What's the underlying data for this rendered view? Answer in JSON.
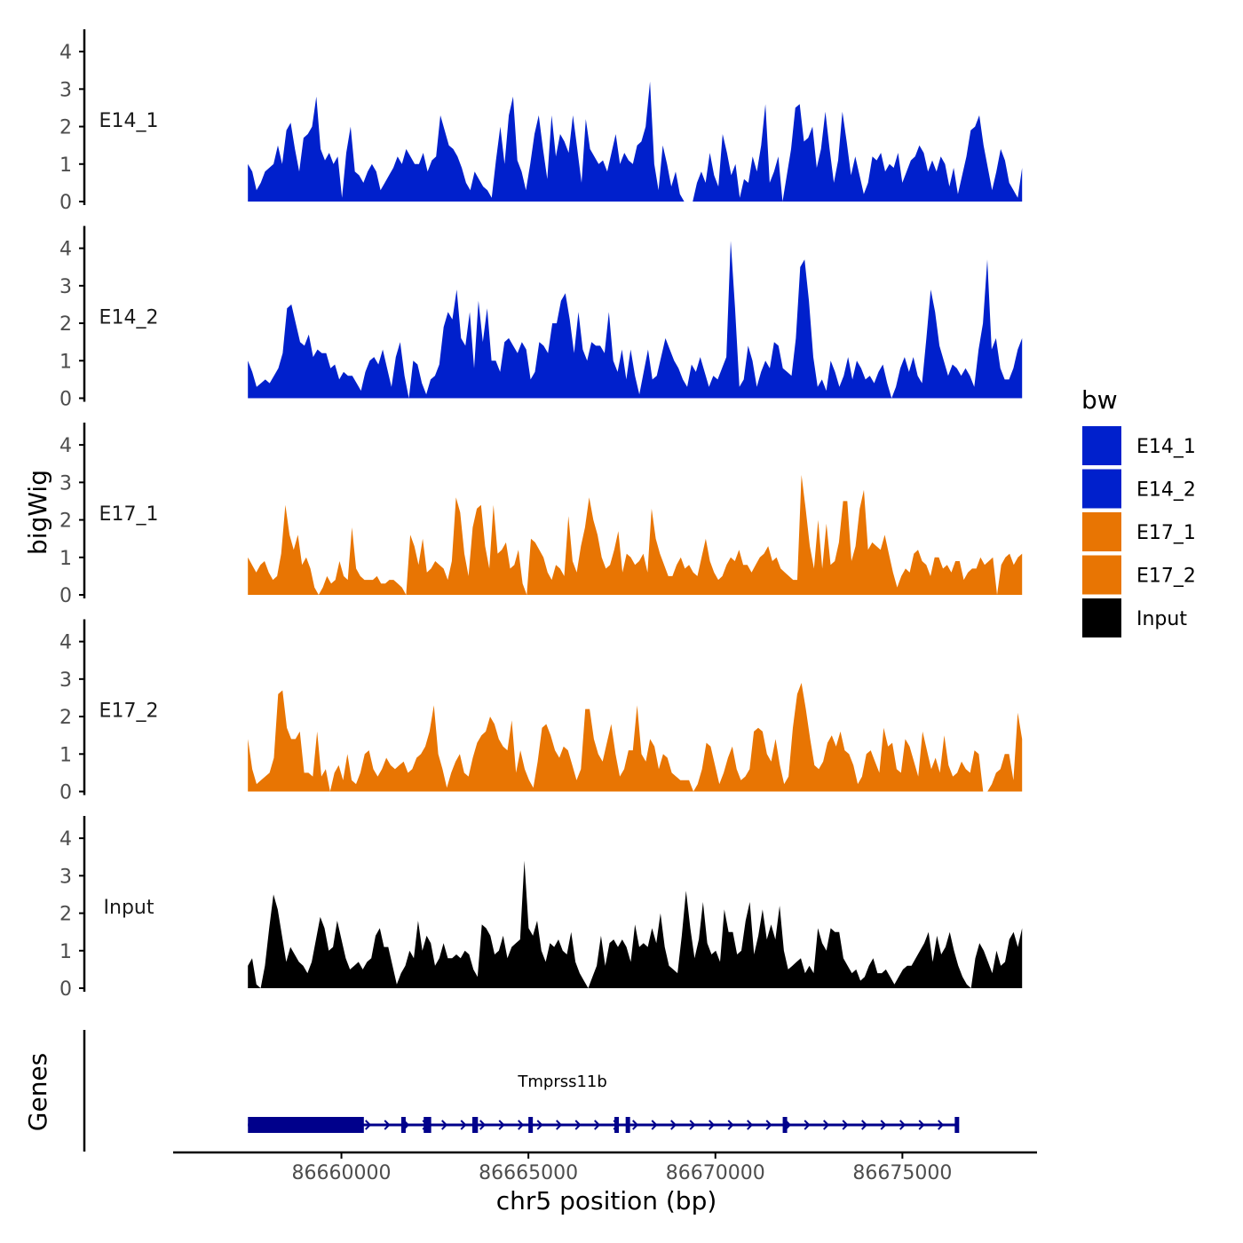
{
  "chart_data": {
    "type": "area",
    "title": "",
    "xlabel": "chr5 position (bp)",
    "ylabel": "bigWig",
    "lower_panel_label": "Genes",
    "xlim": [
      86655500,
      86678600
    ],
    "x_ticks": [
      86660000,
      86665000,
      86670000,
      86675000
    ],
    "x_tick_labels": [
      "86660000",
      "86665000",
      "86670000",
      "86675000"
    ],
    "ylim": [
      0,
      4.5
    ],
    "y_ticks": [
      0,
      1,
      2,
      3,
      4
    ],
    "y_tick_labels": [
      "0",
      "1",
      "2",
      "3",
      "4"
    ],
    "signal_range": [
      86657500,
      86678200
    ],
    "legend": {
      "title": "bw",
      "placement": "right",
      "entries": [
        {
          "name": "E14_1",
          "color": "#0020CC"
        },
        {
          "name": "E14_2",
          "color": "#0020CC"
        },
        {
          "name": "E17_1",
          "color": "#E87503"
        },
        {
          "name": "E17_2",
          "color": "#E87503"
        },
        {
          "name": "Input",
          "color": "#000000"
        }
      ]
    },
    "series": [
      {
        "name": "E14_1",
        "color": "#0020CC",
        "values": [
          1.0,
          0.8,
          0.3,
          0.5,
          0.8,
          0.9,
          1.0,
          1.5,
          1.0,
          1.9,
          2.1,
          1.4,
          0.8,
          1.7,
          1.8,
          2.0,
          2.8,
          1.4,
          1.1,
          1.3,
          1.0,
          1.2,
          0.1,
          1.3,
          2.0,
          0.8,
          0.7,
          0.5,
          0.8,
          1.0,
          0.8,
          0.3,
          0.5,
          0.7,
          0.9,
          1.2,
          1.0,
          1.4,
          1.2,
          1.0,
          1.0,
          1.3,
          0.8,
          1.1,
          1.2,
          2.3,
          1.9,
          1.5,
          1.4,
          1.2,
          0.9,
          0.5,
          0.3,
          0.8,
          0.6,
          0.4,
          0.3,
          0.1,
          1.1,
          2.0,
          1.0,
          2.3,
          2.8,
          1.1,
          0.8,
          0.3,
          1.0,
          1.8,
          2.3,
          1.4,
          0.6,
          2.3,
          1.2,
          1.8,
          1.6,
          1.3,
          2.3,
          1.4,
          0.5,
          2.2,
          1.4,
          1.2,
          1.0,
          1.1,
          0.8,
          1.3,
          1.8,
          1.0,
          1.3,
          1.1,
          1.0,
          1.5,
          1.6,
          2.0,
          3.2,
          1.0,
          0.3,
          1.5,
          1.0,
          0.4,
          0.8,
          0.2,
          0.0,
          0.0,
          0.0,
          0.5,
          0.8,
          0.5,
          1.3,
          0.7,
          0.4,
          1.8,
          1.3,
          0.7,
          1.0,
          0.1,
          0.6,
          0.5,
          1.2,
          0.8,
          1.5,
          2.6,
          0.5,
          0.8,
          1.2,
          0.0,
          0.7,
          1.4,
          2.5,
          2.6,
          1.6,
          1.7,
          2.0,
          0.9,
          1.4,
          2.4,
          1.4,
          0.5,
          1.1,
          2.4,
          1.6,
          0.7,
          1.2,
          0.7,
          0.2,
          0.5,
          1.2,
          1.1,
          1.3,
          0.8,
          1.0,
          0.9,
          1.3,
          0.5,
          0.8,
          1.1,
          1.2,
          1.5,
          1.3,
          0.8,
          1.1,
          0.8,
          1.2,
          1.0,
          0.4,
          0.9,
          0.2,
          0.7,
          1.2,
          1.9,
          2.0,
          2.3,
          1.5,
          0.9,
          0.3,
          0.8,
          1.4,
          1.1,
          0.5,
          0.3,
          0.1,
          0.9
        ]
      },
      {
        "name": "E14_2",
        "color": "#0020CC",
        "values": [
          1.0,
          0.7,
          0.3,
          0.4,
          0.5,
          0.4,
          0.6,
          0.8,
          1.2,
          2.4,
          2.5,
          2.0,
          1.5,
          1.4,
          1.7,
          1.1,
          1.3,
          1.2,
          1.2,
          0.8,
          0.9,
          0.5,
          0.7,
          0.6,
          0.6,
          0.4,
          0.2,
          0.7,
          1.0,
          1.1,
          0.9,
          1.3,
          0.8,
          0.3,
          1.1,
          1.5,
          0.6,
          0.0,
          1.0,
          0.9,
          0.4,
          0.1,
          0.5,
          0.6,
          0.9,
          1.9,
          2.3,
          2.1,
          2.9,
          1.6,
          1.4,
          2.3,
          0.8,
          2.6,
          1.5,
          2.4,
          1.0,
          1.0,
          0.7,
          1.5,
          1.6,
          1.4,
          1.2,
          1.5,
          1.3,
          0.5,
          0.7,
          1.5,
          1.4,
          1.2,
          2.0,
          2.0,
          2.6,
          2.8,
          2.1,
          1.2,
          2.3,
          1.3,
          1.0,
          1.5,
          1.4,
          1.4,
          1.2,
          2.3,
          1.0,
          0.7,
          1.3,
          0.5,
          1.3,
          0.6,
          0.1,
          0.7,
          1.3,
          0.5,
          0.6,
          1.1,
          1.6,
          1.3,
          1.0,
          0.8,
          0.5,
          0.3,
          0.9,
          0.7,
          1.1,
          0.7,
          0.3,
          0.6,
          0.5,
          0.8,
          1.1,
          4.2,
          2.4,
          0.3,
          0.5,
          1.4,
          1.0,
          0.3,
          0.7,
          1.0,
          0.8,
          1.5,
          1.4,
          0.8,
          0.7,
          0.6,
          1.6,
          3.5,
          3.7,
          2.6,
          1.1,
          0.3,
          0.5,
          0.2,
          1.0,
          0.7,
          0.3,
          0.6,
          1.1,
          0.5,
          1.0,
          0.8,
          0.5,
          0.6,
          0.4,
          0.7,
          0.9,
          0.4,
          0.0,
          0.3,
          0.8,
          1.1,
          0.7,
          1.1,
          0.6,
          0.4,
          1.6,
          2.9,
          2.3,
          1.4,
          1.0,
          0.6,
          0.9,
          0.8,
          0.6,
          0.8,
          0.6,
          0.3,
          1.3,
          2.0,
          3.7,
          1.3,
          1.6,
          0.8,
          0.5,
          0.5,
          0.8,
          1.3,
          1.6
        ]
      },
      {
        "name": "E17_1",
        "color": "#E87503",
        "values": [
          1.0,
          0.8,
          0.6,
          0.8,
          0.9,
          0.6,
          0.4,
          0.5,
          1.1,
          2.4,
          1.6,
          1.2,
          1.6,
          0.8,
          1.0,
          0.7,
          0.2,
          0.0,
          0.2,
          0.5,
          0.3,
          0.4,
          0.9,
          0.5,
          0.4,
          1.8,
          0.7,
          0.5,
          0.4,
          0.4,
          0.4,
          0.5,
          0.3,
          0.3,
          0.4,
          0.4,
          0.3,
          0.2,
          0.0,
          1.6,
          1.3,
          0.8,
          1.5,
          0.6,
          0.7,
          0.9,
          0.8,
          0.7,
          0.4,
          0.9,
          2.6,
          2.2,
          1.1,
          0.5,
          1.8,
          2.3,
          2.4,
          1.3,
          0.7,
          2.4,
          1.1,
          1.2,
          1.4,
          0.7,
          0.8,
          1.2,
          0.3,
          0.0,
          1.5,
          1.4,
          1.2,
          1.0,
          0.6,
          0.4,
          0.8,
          0.7,
          0.5,
          2.1,
          0.9,
          0.6,
          1.3,
          1.8,
          2.6,
          2.0,
          1.6,
          1.0,
          0.7,
          0.8,
          1.2,
          1.7,
          0.6,
          1.1,
          1.0,
          0.8,
          0.9,
          1.1,
          0.6,
          2.3,
          1.5,
          1.1,
          0.8,
          0.5,
          0.5,
          0.8,
          1.0,
          0.7,
          0.8,
          0.6,
          0.5,
          1.0,
          1.5,
          0.9,
          0.6,
          0.4,
          0.5,
          0.8,
          1.0,
          0.9,
          1.2,
          0.8,
          0.8,
          0.6,
          0.8,
          1.0,
          1.1,
          1.3,
          0.9,
          1.0,
          0.7,
          0.6,
          0.5,
          0.4,
          0.4,
          3.2,
          2.3,
          1.3,
          0.7,
          2.0,
          0.7,
          1.9,
          0.8,
          0.9,
          1.4,
          2.5,
          2.5,
          0.9,
          1.3,
          2.3,
          2.8,
          1.2,
          1.4,
          1.3,
          1.2,
          1.6,
          1.1,
          0.6,
          0.2,
          0.5,
          0.7,
          0.6,
          1.1,
          1.2,
          0.9,
          0.8,
          0.5,
          1.0,
          1.0,
          0.7,
          0.8,
          0.6,
          0.9,
          0.9,
          0.4,
          0.6,
          0.7,
          0.7,
          1.0,
          0.8,
          0.9,
          1.0,
          0.0,
          0.8,
          1.0,
          1.1,
          0.8,
          1.0,
          1.1
        ]
      },
      {
        "name": "E17_2",
        "color": "#E87503",
        "values": [
          1.4,
          0.6,
          0.2,
          0.3,
          0.4,
          0.5,
          0.9,
          2.6,
          2.7,
          1.7,
          1.4,
          1.4,
          1.6,
          0.5,
          0.5,
          0.4,
          1.6,
          0.4,
          0.6,
          0.0,
          0.5,
          0.7,
          0.3,
          1.0,
          0.3,
          0.2,
          0.5,
          1.0,
          1.1,
          0.6,
          0.4,
          0.6,
          0.9,
          0.7,
          0.6,
          0.7,
          0.8,
          0.5,
          0.6,
          0.9,
          1.0,
          1.2,
          1.6,
          2.3,
          1.0,
          0.6,
          0.1,
          0.5,
          0.8,
          1.0,
          0.5,
          0.4,
          0.9,
          1.3,
          1.5,
          1.6,
          2.0,
          1.8,
          1.4,
          1.2,
          1.1,
          1.9,
          0.5,
          1.1,
          0.6,
          0.3,
          0.1,
          0.8,
          1.7,
          1.8,
          1.5,
          1.1,
          0.9,
          1.2,
          1.1,
          0.7,
          0.3,
          0.6,
          2.2,
          2.2,
          1.4,
          1.0,
          0.8,
          1.3,
          1.8,
          1.0,
          0.4,
          0.6,
          1.1,
          1.1,
          2.3,
          1.0,
          0.8,
          1.4,
          1.2,
          0.6,
          1.0,
          0.9,
          0.5,
          0.4,
          0.3,
          0.3,
          0.3,
          0.0,
          0.2,
          0.6,
          1.3,
          1.2,
          0.7,
          0.2,
          0.5,
          0.9,
          1.2,
          0.6,
          0.3,
          0.4,
          0.6,
          1.6,
          1.7,
          1.6,
          1.0,
          0.8,
          1.4,
          0.7,
          0.2,
          0.4,
          1.7,
          2.6,
          2.9,
          2.2,
          1.4,
          0.7,
          0.6,
          0.8,
          1.3,
          1.5,
          1.2,
          1.6,
          1.1,
          1.0,
          0.7,
          0.2,
          0.4,
          1.0,
          1.1,
          0.8,
          0.5,
          1.7,
          1.2,
          1.3,
          0.6,
          0.5,
          1.4,
          1.2,
          0.8,
          0.4,
          1.6,
          1.1,
          0.6,
          0.9,
          0.5,
          1.5,
          0.7,
          0.4,
          0.5,
          0.8,
          0.6,
          0.5,
          1.1,
          1.0,
          0.0,
          0.0,
          0.2,
          0.5,
          0.6,
          1.0,
          1.0,
          0.3,
          2.1,
          1.4
        ]
      },
      {
        "name": "Input",
        "color": "#000000",
        "values": [
          0.6,
          0.8,
          0.1,
          0.0,
          0.6,
          1.6,
          2.5,
          2.1,
          1.4,
          0.7,
          1.1,
          0.9,
          0.7,
          0.6,
          0.4,
          0.7,
          1.3,
          1.9,
          1.6,
          1.0,
          1.1,
          1.8,
          1.3,
          0.8,
          0.5,
          0.6,
          0.7,
          0.5,
          0.7,
          0.8,
          1.4,
          1.6,
          1.1,
          1.1,
          0.6,
          0.1,
          0.4,
          0.6,
          1.0,
          0.8,
          1.8,
          1.0,
          1.4,
          1.2,
          0.6,
          0.8,
          1.2,
          0.8,
          0.8,
          0.9,
          0.8,
          1.0,
          0.9,
          0.5,
          0.3,
          1.7,
          1.6,
          1.4,
          0.9,
          1.0,
          1.4,
          0.8,
          1.1,
          1.2,
          1.3,
          3.4,
          1.6,
          1.4,
          1.8,
          1.0,
          0.7,
          1.2,
          1.1,
          1.3,
          1.0,
          0.9,
          1.5,
          0.7,
          0.4,
          0.2,
          0.0,
          0.3,
          0.6,
          1.4,
          0.6,
          1.2,
          1.3,
          1.1,
          1.3,
          1.1,
          0.7,
          1.7,
          1.1,
          1.2,
          1.1,
          1.6,
          1.2,
          2.0,
          1.1,
          0.6,
          0.5,
          0.4,
          1.4,
          2.6,
          1.6,
          0.8,
          1.3,
          2.3,
          1.2,
          0.9,
          1.0,
          0.7,
          2.1,
          1.5,
          1.5,
          0.9,
          1.0,
          1.8,
          2.3,
          0.9,
          1.4,
          2.1,
          1.3,
          1.7,
          1.3,
          2.2,
          1.0,
          0.5,
          0.6,
          0.7,
          0.8,
          0.4,
          0.6,
          0.4,
          1.6,
          1.2,
          1.0,
          1.6,
          1.5,
          1.5,
          0.8,
          0.6,
          0.4,
          0.5,
          0.2,
          0.3,
          0.6,
          0.8,
          0.4,
          0.4,
          0.5,
          0.3,
          0.1,
          0.3,
          0.5,
          0.6,
          0.6,
          0.8,
          1.0,
          1.2,
          1.5,
          0.7,
          1.4,
          0.9,
          1.1,
          1.5,
          1.0,
          0.6,
          0.3,
          0.1,
          0.0,
          0.8,
          1.2,
          1.0,
          0.7,
          0.4,
          1.0,
          0.6,
          0.7,
          1.3,
          1.5,
          1.1,
          1.6
        ]
      }
    ],
    "genes": [
      {
        "name": "Tmprss11b",
        "strand": "-",
        "start": 86657500,
        "end": 86676500,
        "color": "#00008B",
        "exons": [
          [
            86657500,
            86660600
          ],
          [
            86661600,
            86661700
          ],
          [
            86662200,
            86662400
          ],
          [
            86663500,
            86663650
          ],
          [
            86665000,
            86665100
          ],
          [
            86667300,
            86667400
          ],
          [
            86667600,
            86667700
          ],
          [
            86671800,
            86671900
          ],
          [
            86676400,
            86676500
          ]
        ]
      }
    ]
  }
}
